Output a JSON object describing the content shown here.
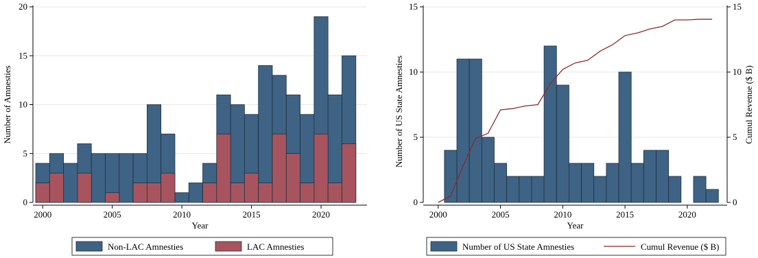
{
  "chart_data": [
    {
      "type": "bar",
      "stacked_overlay": true,
      "xlabel": "Year",
      "ylabel": "Number of Amnesties",
      "xlim": [
        1999.3,
        2023.3
      ],
      "ylim": [
        0,
        20
      ],
      "xticks": [
        2000,
        2005,
        2010,
        2015,
        2020
      ],
      "yticks": [
        0,
        5,
        10,
        15,
        20
      ],
      "x": [
        2000,
        2001,
        2002,
        2003,
        2004,
        2005,
        2006,
        2007,
        2008,
        2009,
        2010,
        2011,
        2012,
        2013,
        2014,
        2015,
        2016,
        2017,
        2018,
        2019,
        2020,
        2021,
        2022
      ],
      "series": [
        {
          "name": "Non-LAC Amnesties",
          "color": "#3e6385",
          "values": [
            4,
            5,
            4,
            6,
            5,
            5,
            5,
            5,
            10,
            7,
            1,
            2,
            4,
            11,
            10,
            9,
            14,
            13,
            11,
            9,
            19,
            11,
            15
          ]
        },
        {
          "name": "LAC Amnesties",
          "color": "#a8545e",
          "values": [
            2,
            3,
            0,
            3,
            0,
            1,
            0,
            2,
            2,
            3,
            0,
            0,
            2,
            7,
            2,
            3,
            2,
            7,
            5,
            2,
            7,
            2,
            6
          ]
        }
      ],
      "legend_position": "bottom",
      "grid": "horizontal"
    },
    {
      "type": "bar+line",
      "xlabel": "Year",
      "ylabel": "Number of US State Amnesties",
      "y2label": "Cumul Revenue ($ B)",
      "xlim": [
        1998.8,
        2023.2
      ],
      "ylim": [
        0,
        15
      ],
      "y2lim": [
        0,
        15
      ],
      "xticks": [
        2000,
        2005,
        2010,
        2015,
        2020
      ],
      "yticks": [
        0,
        5,
        10,
        15
      ],
      "y2ticks": [
        0,
        5,
        10,
        15
      ],
      "bars": {
        "name": "Number of US State Amnesties",
        "color": "#3e6385",
        "x": [
          2001,
          2002,
          2003,
          2004,
          2005,
          2006,
          2007,
          2008,
          2009,
          2010,
          2011,
          2012,
          2013,
          2014,
          2015,
          2016,
          2017,
          2018,
          2019,
          2020,
          2021,
          2022
        ],
        "values": [
          4,
          11,
          11,
          5,
          3,
          2,
          2,
          2,
          12,
          9,
          3,
          3,
          2,
          3,
          10,
          3,
          4,
          4,
          2,
          0,
          2,
          1
        ]
      },
      "line": {
        "name": "Cumul Revenue ($ B)",
        "color": "#8b2a2a",
        "x": [
          2000,
          2001,
          2002,
          2003,
          2004,
          2005,
          2006,
          2007,
          2008,
          2009,
          2010,
          2011,
          2012,
          2013,
          2014,
          2015,
          2016,
          2017,
          2018,
          2019,
          2020,
          2021,
          2022
        ],
        "values": [
          0,
          0.5,
          2.8,
          4.9,
          5.3,
          7.1,
          7.2,
          7.4,
          7.5,
          9.1,
          10.2,
          10.7,
          10.9,
          11.6,
          12.1,
          12.8,
          13.0,
          13.3,
          13.5,
          14.0,
          14.0,
          14.05,
          14.05
        ]
      },
      "legend_position": "bottom",
      "grid": "horizontal"
    }
  ]
}
